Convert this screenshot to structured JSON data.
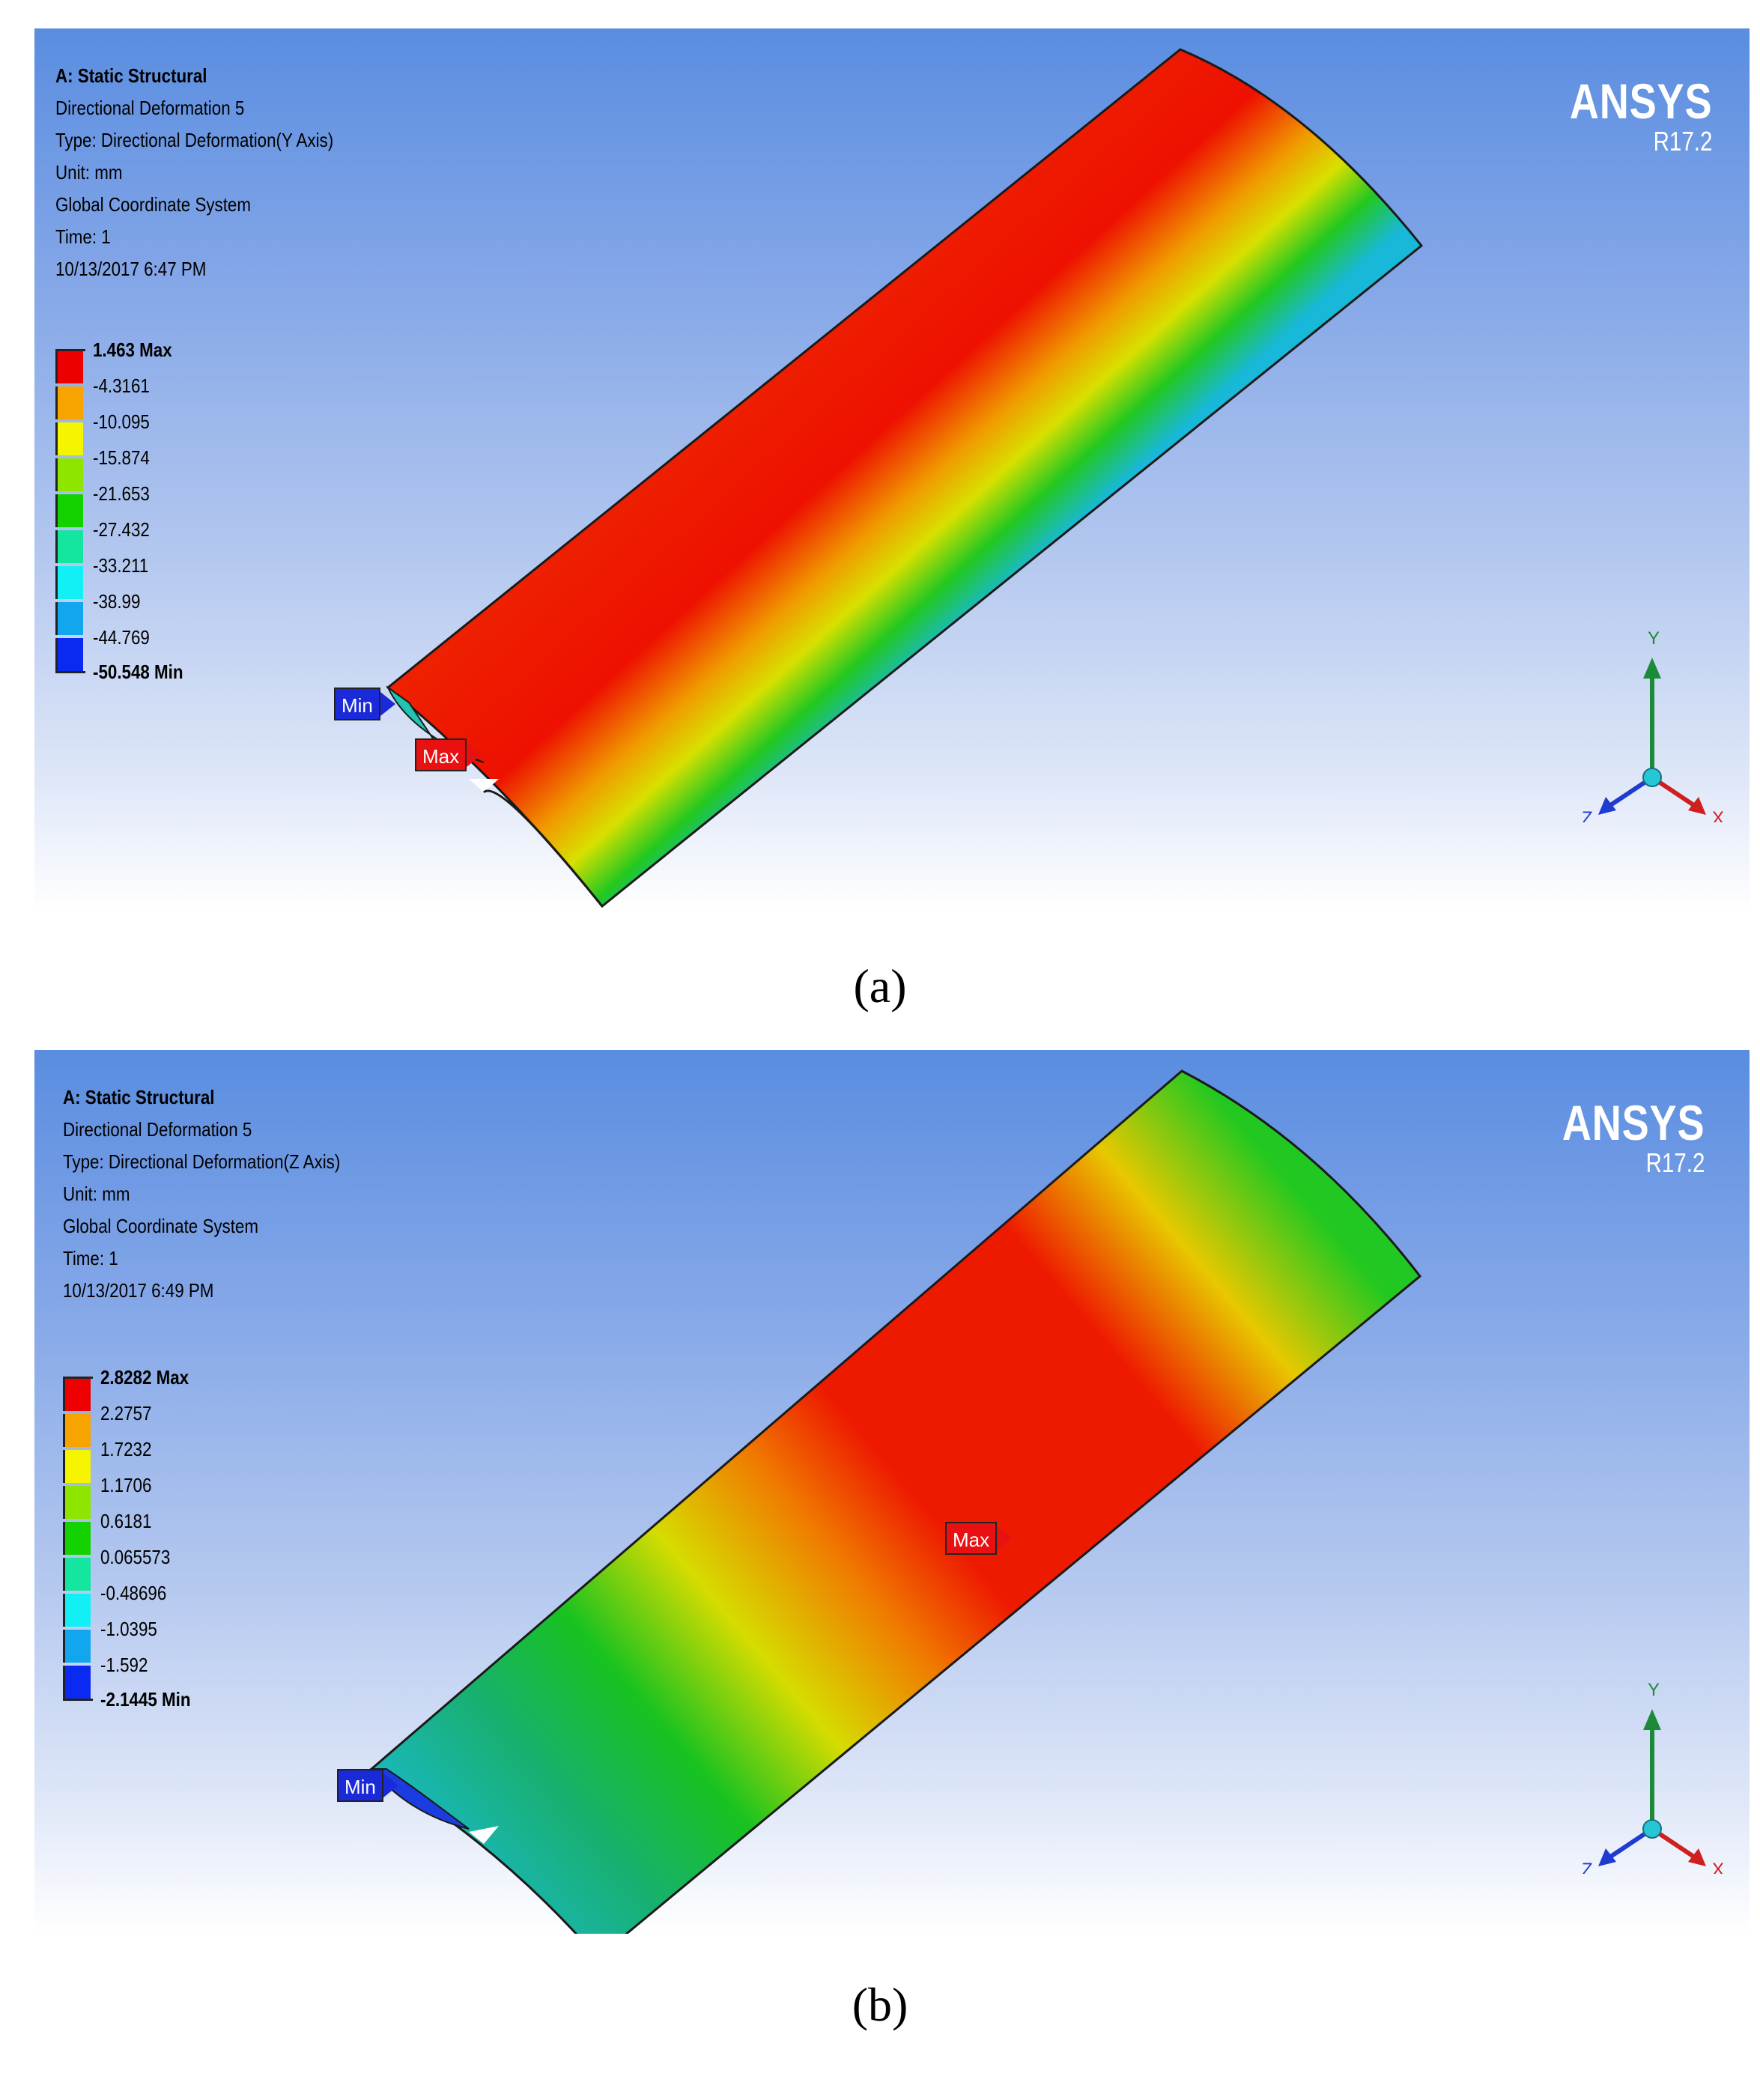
{
  "panels": [
    {
      "info": {
        "analysis": "A: Static Structural",
        "result": "Directional Deformation 5",
        "type": "Type: Directional Deformation(Y Axis)",
        "unit": "Unit: mm",
        "coord": "Global Coordinate System",
        "time": "Time: 1",
        "date": "10/13/2017 6:47 PM"
      },
      "brand": {
        "name": "ANSYS",
        "version": "R17.2"
      },
      "legend": [
        "1.463 Max",
        "-4.3161",
        "-10.095",
        "-15.874",
        "-21.653",
        "-27.432",
        "-33.211",
        "-38.99",
        "-44.769",
        "-50.548 Min"
      ],
      "min_tag": "Min",
      "max_tag": "Max",
      "axes": {
        "y": "Y",
        "z": "Z",
        "x": "X"
      },
      "caption": "(a)"
    },
    {
      "info": {
        "analysis": "A: Static Structural",
        "result": "Directional Deformation 5",
        "type": "Type: Directional Deformation(Z Axis)",
        "unit": "Unit: mm",
        "coord": "Global Coordinate System",
        "time": "Time: 1",
        "date": "10/13/2017 6:49 PM"
      },
      "brand": {
        "name": "ANSYS",
        "version": "R17.2"
      },
      "legend": [
        "2.8282 Max",
        "2.2757",
        "1.7232",
        "1.1706",
        "0.6181",
        "0.065573",
        "-0.48696",
        "-1.0395",
        "-1.592",
        "-2.1445 Min"
      ],
      "min_tag": "Min",
      "max_tag": "Max",
      "axes": {
        "y": "Y",
        "z": "Z",
        "x": "X"
      },
      "caption": "(b)"
    }
  ],
  "legend_colors": [
    "#ee0000",
    "#f7a400",
    "#f5f500",
    "#8ee600",
    "#13d200",
    "#14e6a0",
    "#12f0f5",
    "#12a6ee",
    "#0a2af2"
  ]
}
